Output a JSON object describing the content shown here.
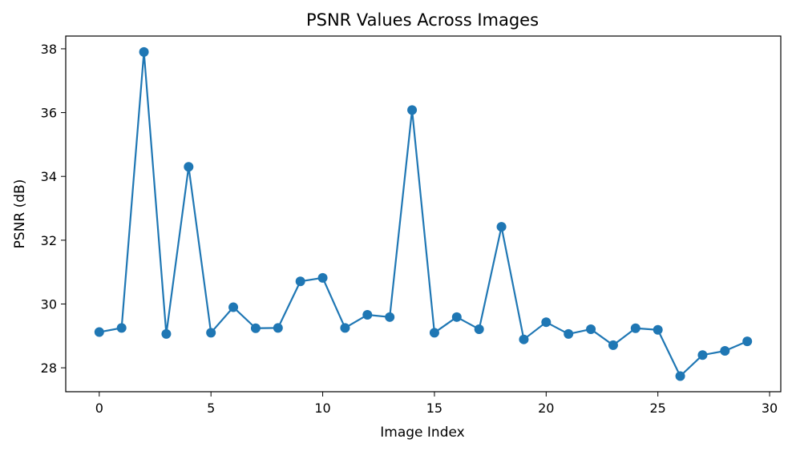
{
  "chart_data": {
    "type": "line",
    "title": "PSNR Values Across Images",
    "xlabel": "Image Index",
    "ylabel": "PSNR (dB)",
    "xlim": [
      -1.5,
      30.5
    ],
    "ylim": [
      27.25,
      38.4
    ],
    "xticks": [
      0,
      5,
      10,
      15,
      20,
      25,
      30
    ],
    "yticks": [
      28,
      30,
      32,
      34,
      36,
      38
    ],
    "grid": false,
    "color": "#1f77b4",
    "marker": "circle",
    "series": [
      {
        "x": [
          0,
          1,
          2,
          3,
          4,
          5,
          6,
          7,
          8,
          9,
          10,
          11,
          12,
          13,
          14,
          15,
          16,
          17,
          18,
          19,
          20,
          21,
          22,
          23,
          24,
          25,
          26,
          27,
          28,
          29
        ],
        "values": [
          29.12,
          29.25,
          37.9,
          29.06,
          34.3,
          29.1,
          29.9,
          29.24,
          29.25,
          30.71,
          30.82,
          29.25,
          29.66,
          29.59,
          36.08,
          29.1,
          29.59,
          29.21,
          32.42,
          28.89,
          29.43,
          29.06,
          29.21,
          28.71,
          29.24,
          29.19,
          27.74,
          28.4,
          28.53,
          28.83
        ]
      }
    ]
  }
}
